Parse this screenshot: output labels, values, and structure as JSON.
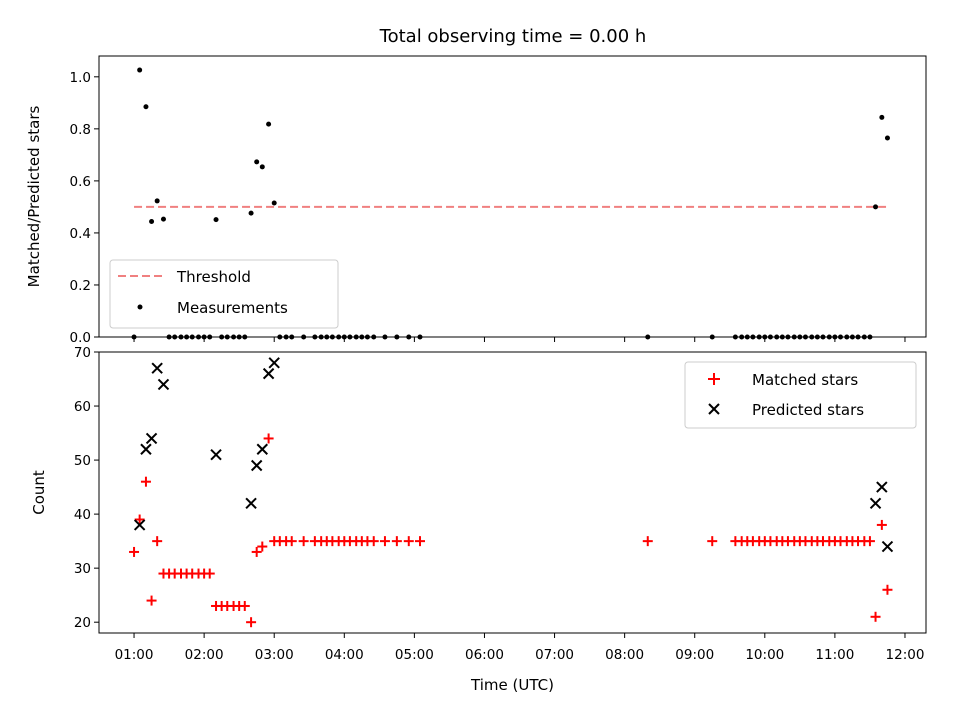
{
  "chart_data": [
    {
      "type": "scatter",
      "title": "Total observing time = 0.00 h",
      "ylabel": "Matched/Predicted stars",
      "xlabel": "",
      "xlim": [
        0.5,
        12.3
      ],
      "ylim": [
        0,
        1.08
      ],
      "yticks": [
        "0.0",
        "0.2",
        "0.4",
        "0.6",
        "0.8",
        "1.0"
      ],
      "legend": "lower-left",
      "series": [
        {
          "name": "Threshold",
          "kind": "dashed-line",
          "color": "#f08080",
          "x": [
            1.0,
            11.75
          ],
          "y": [
            0.5,
            0.5
          ]
        },
        {
          "name": "Measurements",
          "kind": "dot",
          "color": "#000000",
          "points": [
            [
              1.0,
              0.0
            ],
            [
              1.08,
              1.026
            ],
            [
              1.17,
              0.885
            ],
            [
              1.25,
              0.444
            ],
            [
              1.33,
              0.523
            ],
            [
              1.42,
              0.453
            ],
            [
              1.5,
              0.0
            ],
            [
              1.58,
              0.0
            ],
            [
              1.67,
              0.0
            ],
            [
              1.75,
              0.0
            ],
            [
              1.83,
              0.0
            ],
            [
              1.92,
              0.0
            ],
            [
              2.0,
              0.0
            ],
            [
              2.08,
              0.0
            ],
            [
              2.17,
              0.451
            ],
            [
              2.25,
              0.0
            ],
            [
              2.33,
              0.0
            ],
            [
              2.42,
              0.0
            ],
            [
              2.5,
              0.0
            ],
            [
              2.58,
              0.0
            ],
            [
              2.67,
              0.476
            ],
            [
              2.75,
              0.673
            ],
            [
              2.83,
              0.654
            ],
            [
              2.92,
              0.818
            ],
            [
              3.0,
              0.515
            ],
            [
              3.08,
              0.0
            ],
            [
              3.17,
              0.0
            ],
            [
              3.25,
              0.0
            ],
            [
              3.42,
              0.0
            ],
            [
              3.58,
              0.0
            ],
            [
              3.67,
              0.0
            ],
            [
              3.75,
              0.0
            ],
            [
              3.83,
              0.0
            ],
            [
              3.92,
              0.0
            ],
            [
              4.0,
              0.0
            ],
            [
              4.08,
              0.0
            ],
            [
              4.17,
              0.0
            ],
            [
              4.25,
              0.0
            ],
            [
              4.33,
              0.0
            ],
            [
              4.42,
              0.0
            ],
            [
              4.58,
              0.0
            ],
            [
              4.75,
              0.0
            ],
            [
              4.92,
              0.0
            ],
            [
              5.08,
              0.0
            ],
            [
              8.33,
              0.0
            ],
            [
              9.25,
              0.0
            ],
            [
              9.58,
              0.0
            ],
            [
              9.67,
              0.0
            ],
            [
              9.75,
              0.0
            ],
            [
              9.83,
              0.0
            ],
            [
              9.92,
              0.0
            ],
            [
              10.0,
              0.0
            ],
            [
              10.08,
              0.0
            ],
            [
              10.17,
              0.0
            ],
            [
              10.25,
              0.0
            ],
            [
              10.33,
              0.0
            ],
            [
              10.42,
              0.0
            ],
            [
              10.5,
              0.0
            ],
            [
              10.58,
              0.0
            ],
            [
              10.67,
              0.0
            ],
            [
              10.75,
              0.0
            ],
            [
              10.83,
              0.0
            ],
            [
              10.92,
              0.0
            ],
            [
              11.0,
              0.0
            ],
            [
              11.08,
              0.0
            ],
            [
              11.17,
              0.0
            ],
            [
              11.25,
              0.0
            ],
            [
              11.33,
              0.0
            ],
            [
              11.42,
              0.0
            ],
            [
              11.5,
              0.0
            ],
            [
              11.58,
              0.5
            ],
            [
              11.67,
              0.844
            ],
            [
              11.75,
              0.765
            ]
          ]
        }
      ]
    },
    {
      "type": "scatter",
      "title": "",
      "ylabel": "Count",
      "xlabel": "Time (UTC)",
      "xlim": [
        0.5,
        12.3
      ],
      "ylim": [
        18,
        70
      ],
      "yticks": [
        "20",
        "30",
        "40",
        "50",
        "60",
        "70"
      ],
      "xticks": [
        "01:00",
        "02:00",
        "03:00",
        "04:00",
        "05:00",
        "06:00",
        "07:00",
        "08:00",
        "09:00",
        "10:00",
        "11:00",
        "12:00"
      ],
      "legend": "top-right",
      "series": [
        {
          "name": "Matched stars",
          "marker": "plus",
          "color": "#ff0000",
          "points": [
            [
              1.0,
              33
            ],
            [
              1.08,
              39
            ],
            [
              1.17,
              46
            ],
            [
              1.25,
              24
            ],
            [
              1.33,
              35
            ],
            [
              1.42,
              29
            ],
            [
              1.5,
              29
            ],
            [
              1.58,
              29
            ],
            [
              1.67,
              29
            ],
            [
              1.75,
              29
            ],
            [
              1.83,
              29
            ],
            [
              1.92,
              29
            ],
            [
              2.0,
              29
            ],
            [
              2.08,
              29
            ],
            [
              2.17,
              23
            ],
            [
              2.25,
              23
            ],
            [
              2.33,
              23
            ],
            [
              2.42,
              23
            ],
            [
              2.5,
              23
            ],
            [
              2.58,
              23
            ],
            [
              2.67,
              20
            ],
            [
              2.75,
              33
            ],
            [
              2.83,
              34
            ],
            [
              2.92,
              54
            ],
            [
              3.0,
              35
            ],
            [
              3.08,
              35
            ],
            [
              3.17,
              35
            ],
            [
              3.25,
              35
            ],
            [
              3.42,
              35
            ],
            [
              3.58,
              35
            ],
            [
              3.67,
              35
            ],
            [
              3.75,
              35
            ],
            [
              3.83,
              35
            ],
            [
              3.92,
              35
            ],
            [
              4.0,
              35
            ],
            [
              4.08,
              35
            ],
            [
              4.17,
              35
            ],
            [
              4.25,
              35
            ],
            [
              4.33,
              35
            ],
            [
              4.42,
              35
            ],
            [
              4.58,
              35
            ],
            [
              4.75,
              35
            ],
            [
              4.92,
              35
            ],
            [
              5.08,
              35
            ],
            [
              8.33,
              35
            ],
            [
              9.25,
              35
            ],
            [
              9.58,
              35
            ],
            [
              9.67,
              35
            ],
            [
              9.75,
              35
            ],
            [
              9.83,
              35
            ],
            [
              9.92,
              35
            ],
            [
              10.0,
              35
            ],
            [
              10.08,
              35
            ],
            [
              10.17,
              35
            ],
            [
              10.25,
              35
            ],
            [
              10.33,
              35
            ],
            [
              10.42,
              35
            ],
            [
              10.5,
              35
            ],
            [
              10.58,
              35
            ],
            [
              10.67,
              35
            ],
            [
              10.75,
              35
            ],
            [
              10.83,
              35
            ],
            [
              10.92,
              35
            ],
            [
              11.0,
              35
            ],
            [
              11.08,
              35
            ],
            [
              11.17,
              35
            ],
            [
              11.25,
              35
            ],
            [
              11.33,
              35
            ],
            [
              11.42,
              35
            ],
            [
              11.5,
              35
            ],
            [
              11.58,
              21
            ],
            [
              11.67,
              38
            ],
            [
              11.75,
              26
            ]
          ]
        },
        {
          "name": "Predicted stars",
          "marker": "x",
          "color": "#000000",
          "points": [
            [
              1.08,
              38
            ],
            [
              1.17,
              52
            ],
            [
              1.25,
              54
            ],
            [
              1.33,
              67
            ],
            [
              1.42,
              64
            ],
            [
              2.17,
              51
            ],
            [
              2.67,
              42
            ],
            [
              2.75,
              49
            ],
            [
              2.83,
              52
            ],
            [
              2.92,
              66
            ],
            [
              3.0,
              68
            ],
            [
              11.58,
              42
            ],
            [
              11.67,
              45
            ],
            [
              11.75,
              34
            ]
          ]
        }
      ]
    }
  ]
}
